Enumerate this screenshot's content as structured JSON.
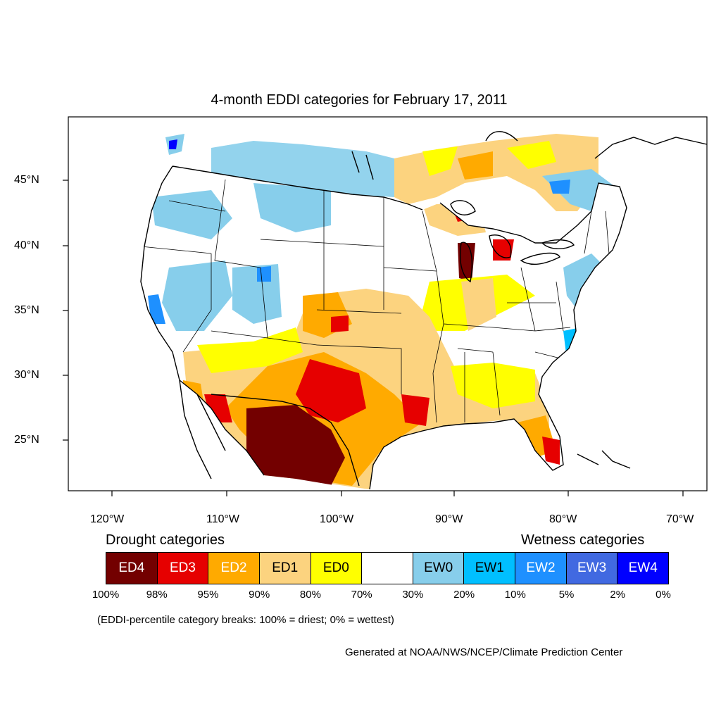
{
  "title": "4-month EDDI categories for February 17, 2011",
  "lat_labels": [
    "45°N",
    "40°N",
    "35°N",
    "30°N",
    "25°N"
  ],
  "lon_labels": [
    "120°W",
    "110°W",
    "100°W",
    "90°W",
    "80°W",
    "70°W"
  ],
  "legend": {
    "drought_title": "Drought categories",
    "wetness_title": "Wetness categories",
    "categories": [
      {
        "label": "ED4",
        "color": "#730000",
        "text_color": "#ffffff"
      },
      {
        "label": "ED3",
        "color": "#e60000",
        "text_color": "#ffffff"
      },
      {
        "label": "ED2",
        "color": "#ffaa00",
        "text_color": "#ffffff"
      },
      {
        "label": "ED1",
        "color": "#fcd37f",
        "text_color": "#000000"
      },
      {
        "label": "ED0",
        "color": "#ffff00",
        "text_color": "#000000"
      },
      {
        "label": "",
        "color": "#ffffff",
        "text_color": "#000000"
      },
      {
        "label": "EW0",
        "color": "#87ceeb",
        "text_color": "#000000"
      },
      {
        "label": "EW1",
        "color": "#00bfff",
        "text_color": "#000000"
      },
      {
        "label": "EW2",
        "color": "#1e90ff",
        "text_color": "#ffffff"
      },
      {
        "label": "EW3",
        "color": "#4169e1",
        "text_color": "#ffffff"
      },
      {
        "label": "EW4",
        "color": "#0000ff",
        "text_color": "#ffffff"
      }
    ],
    "breaks": [
      "100%",
      "98%",
      "95%",
      "90%",
      "80%",
      "70%",
      "30%",
      "20%",
      "10%",
      "5%",
      "2%",
      "0%"
    ],
    "note": "(EDDI-percentile category breaks: 100% = driest; 0% = wettest)"
  },
  "credit": "Generated at NOAA/NWS/NCEP/Climate Prediction Center"
}
